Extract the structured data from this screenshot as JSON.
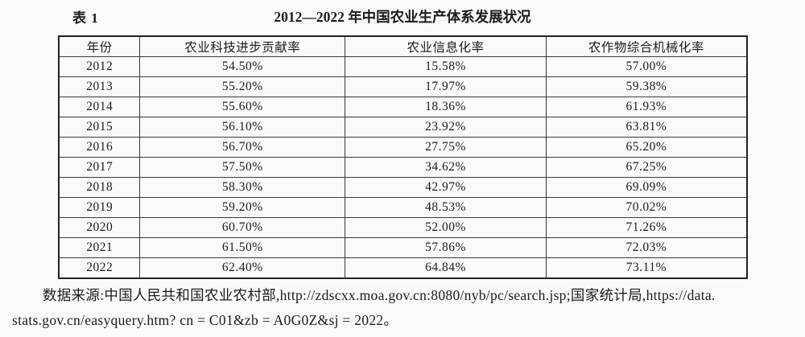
{
  "caption": {
    "label": "表 1",
    "title": "2012—2022 年中国农业生产体系发展状况"
  },
  "table": {
    "headers": [
      "年份",
      "农业科技进步贡献率",
      "农业信息化率",
      "农作物综合机械化率"
    ],
    "rows": [
      [
        "2012",
        "54.50%",
        "15.58%",
        "57.00%"
      ],
      [
        "2013",
        "55.20%",
        "17.97%",
        "59.38%"
      ],
      [
        "2014",
        "55.60%",
        "18.36%",
        "61.93%"
      ],
      [
        "2015",
        "56.10%",
        "23.92%",
        "63.81%"
      ],
      [
        "2016",
        "56.70%",
        "27.75%",
        "65.20%"
      ],
      [
        "2017",
        "57.50%",
        "34.62%",
        "67.25%"
      ],
      [
        "2018",
        "58.30%",
        "42.97%",
        "69.09%"
      ],
      [
        "2019",
        "59.20%",
        "48.53%",
        "70.02%"
      ],
      [
        "2020",
        "60.70%",
        "52.00%",
        "71.26%"
      ],
      [
        "2021",
        "61.50%",
        "57.86%",
        "72.03%"
      ],
      [
        "2022",
        "62.40%",
        "64.84%",
        "73.11%"
      ]
    ]
  },
  "source_note": {
    "line1": "数据来源:中国人民共和国农业农村部,http://zdscxx.moa.gov.cn:8080/nyb/pc/search.jsp;国家统计局,https://data.",
    "line2": "stats.gov.cn/easyquery.htm? cn = C01&zb = A0G0Z&sj = 2022。"
  },
  "colors": {
    "text": "#1c1c1c",
    "border": "#3a3a3a",
    "background": "#fafaf8"
  }
}
